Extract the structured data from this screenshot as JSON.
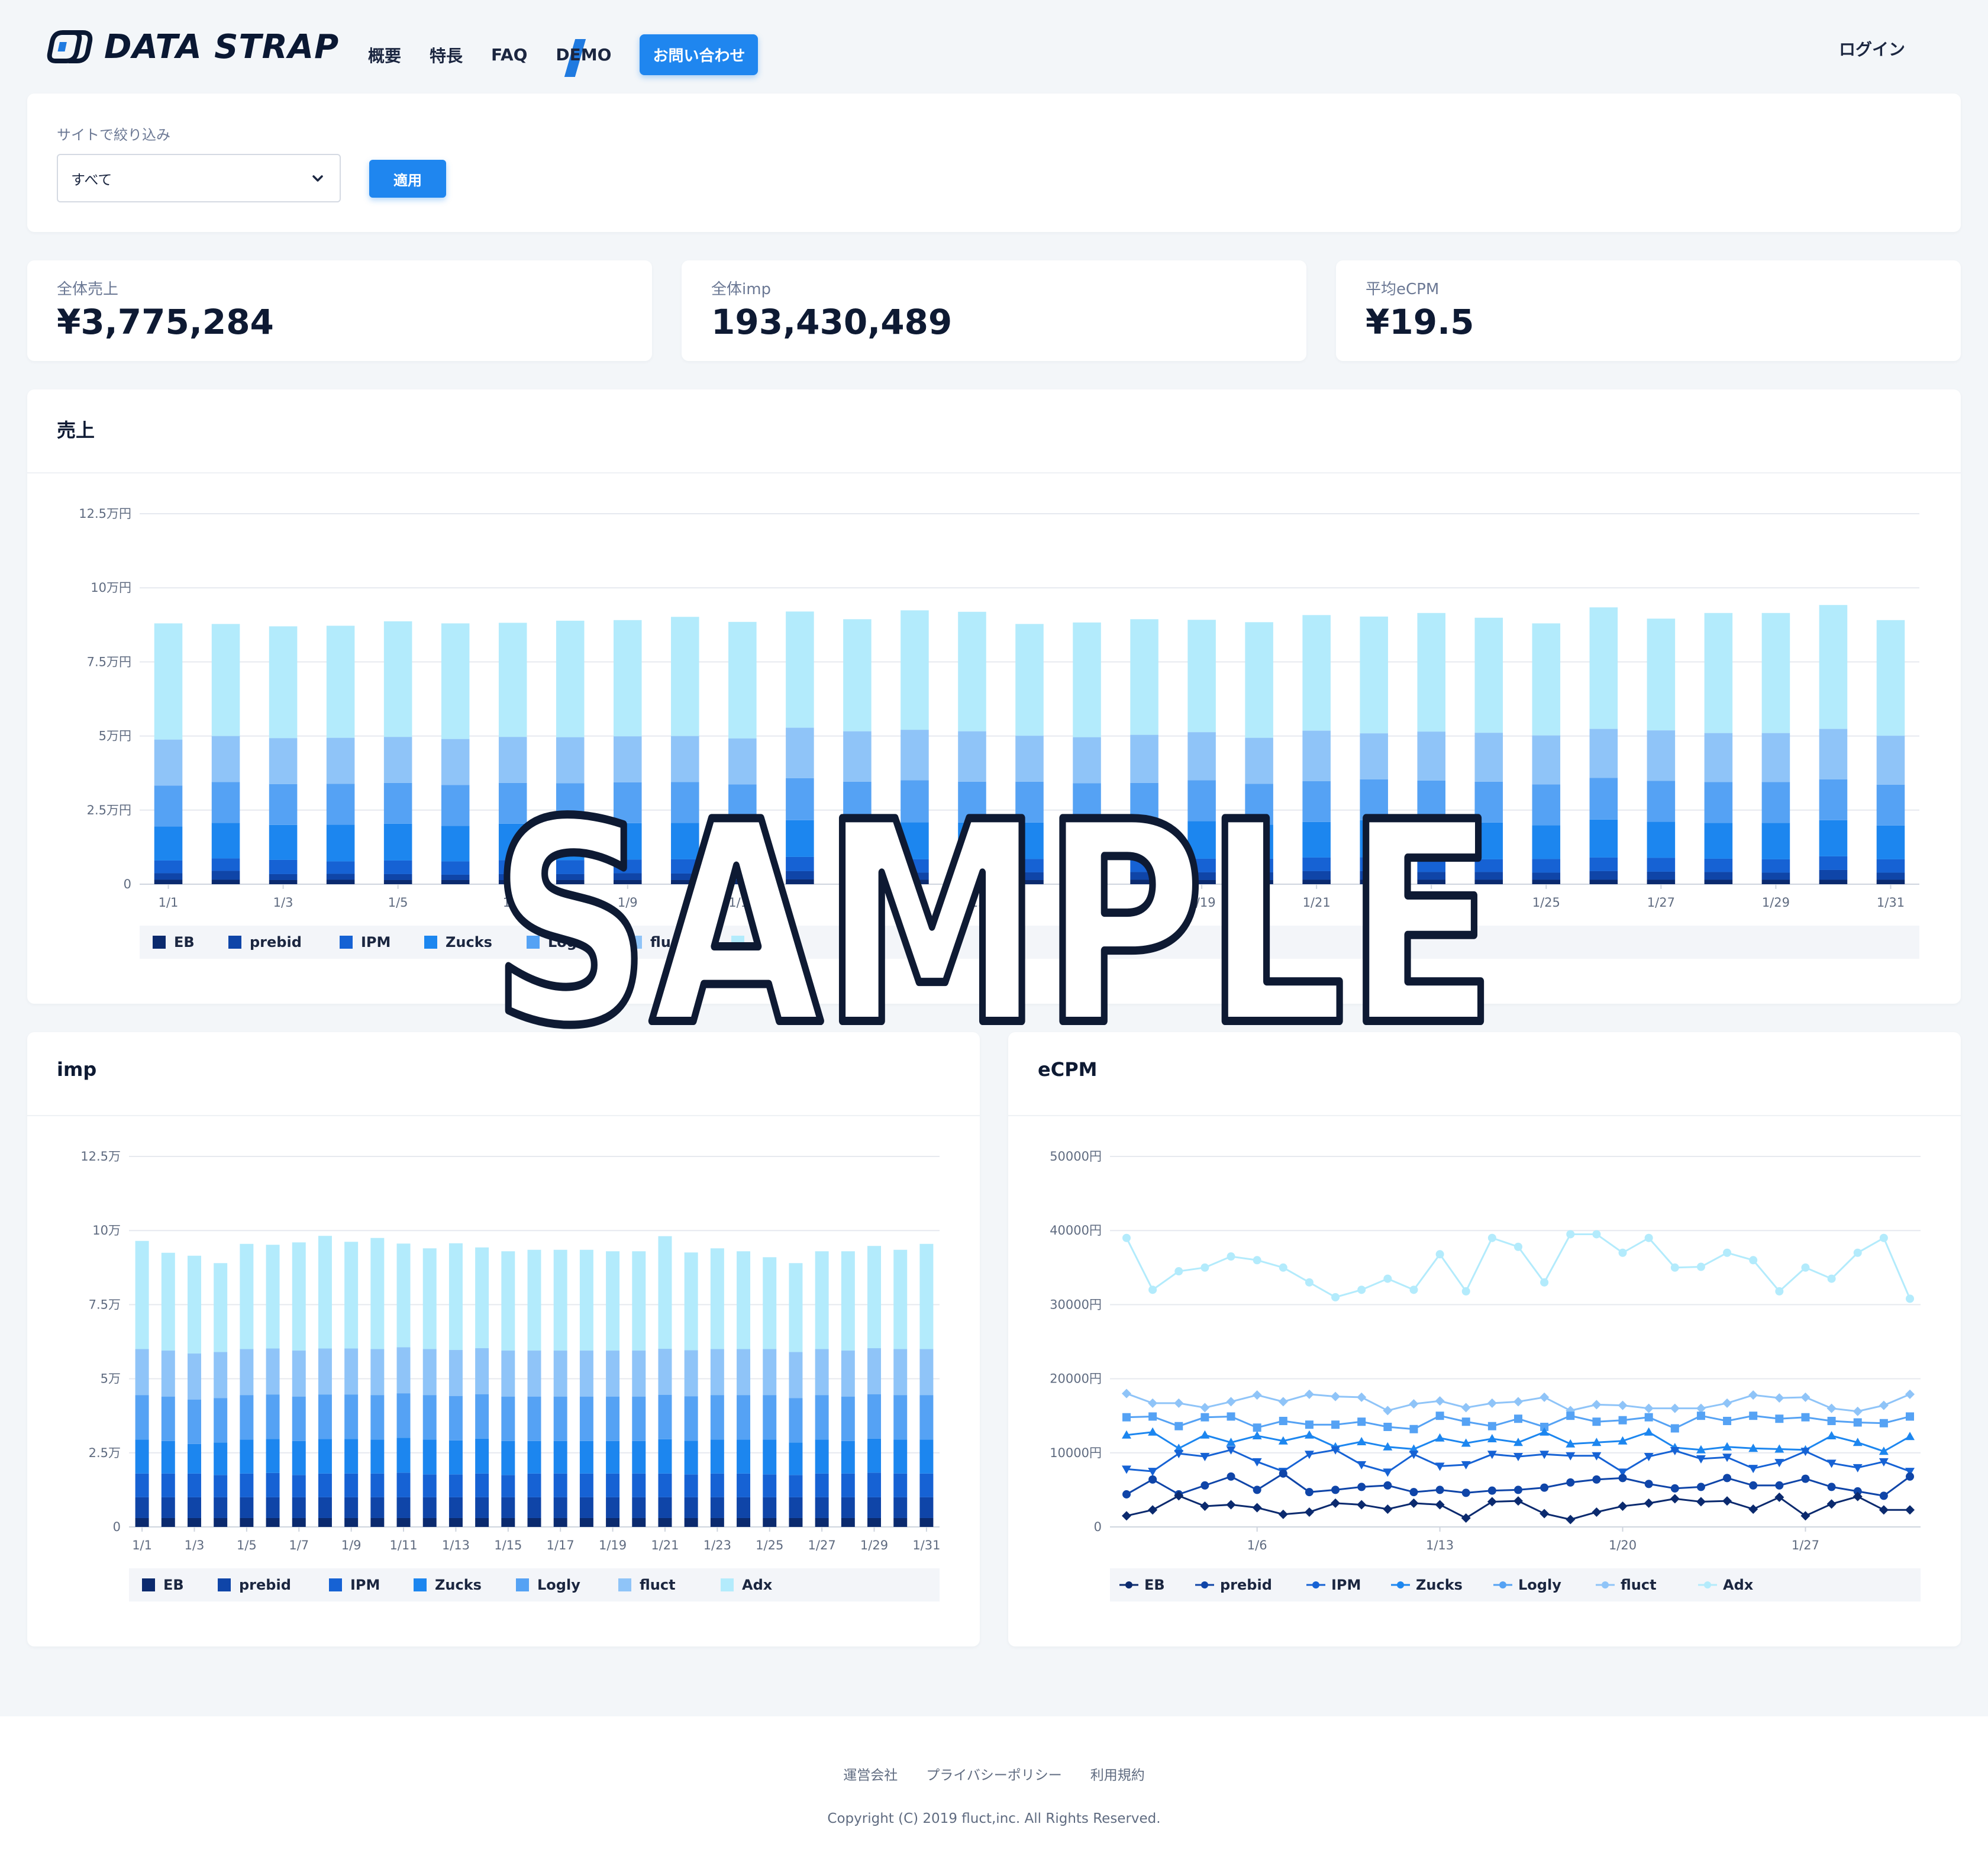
{
  "header": {
    "logo_text": "DATA STRAP",
    "nav": [
      {
        "label": "概要"
      },
      {
        "label": "特長"
      },
      {
        "label": "FAQ"
      },
      {
        "label": "DEMO"
      }
    ],
    "contact_label": "お問い合わせ",
    "login_label": "ログイン"
  },
  "filter": {
    "label": "サイトで絞り込み",
    "selected": "すべて",
    "apply_label": "適用"
  },
  "stats": [
    {
      "label": "全体売上",
      "value": "¥3,775,284"
    },
    {
      "label": "全体imp",
      "value": "193,430,489"
    },
    {
      "label": "平均eCPM",
      "value": "¥19.5"
    }
  ],
  "colors": {
    "EB": "#0b2a6e",
    "prebid": "#0f45a8",
    "IPM": "#1662d4",
    "Zucks": "#1c86ef",
    "Logly": "#55a2f4",
    "fluct": "#8fc4f8",
    "Adx": "#b3ebfc"
  },
  "chart_data": [
    {
      "type": "bar",
      "stacked": true,
      "title": "売上",
      "categories": [
        "1/1",
        "1/2",
        "1/3",
        "1/4",
        "1/5",
        "1/6",
        "1/7",
        "1/8",
        "1/9",
        "1/10",
        "1/11",
        "1/12",
        "1/13",
        "1/14",
        "1/15",
        "1/16",
        "1/17",
        "1/18",
        "1/19",
        "1/20",
        "1/21",
        "1/22",
        "1/23",
        "1/24",
        "1/25",
        "1/26",
        "1/27",
        "1/28",
        "1/29",
        "1/30",
        "1/31"
      ],
      "tick_labels": [
        "1/1",
        "1/3",
        "1/5",
        "1/7",
        "1/9",
        "1/11",
        "1/13",
        "1/15",
        "1/17",
        "1/19",
        "1/21",
        "1/23",
        "1/25",
        "1/27",
        "1/29",
        "1/31"
      ],
      "y_ticks": [
        "0",
        "2.5万円",
        "5万円",
        "7.5万円",
        "10万円",
        "12.5万円"
      ],
      "ylim": [
        0,
        125000
      ],
      "series": [
        {
          "name": "EB",
          "values": [
            1500,
            1500,
            1400,
            1500,
            1400,
            1400,
            1400,
            1400,
            1400,
            1400,
            1400,
            1600,
            1500,
            1500,
            1400,
            1400,
            1400,
            1500,
            1400,
            1400,
            1500,
            1500,
            1500,
            1500,
            1500,
            1500,
            1500,
            1500,
            1500,
            1500,
            1500
          ]
        },
        {
          "name": "prebid",
          "values": [
            2200,
            3000,
            2000,
            2000,
            2000,
            1800,
            2000,
            2000,
            2300,
            2200,
            2300,
            2800,
            2800,
            2400,
            2400,
            2600,
            2400,
            2600,
            2600,
            2600,
            2900,
            2900,
            2600,
            2600,
            2400,
            2900,
            2700,
            2600,
            2400,
            3300,
            2400
          ]
        },
        {
          "name": "IPM",
          "values": [
            4300,
            4200,
            4800,
            4200,
            4600,
            4500,
            4700,
            4700,
            4600,
            4800,
            4400,
            4800,
            4700,
            4500,
            4500,
            4500,
            4500,
            4600,
            4600,
            4600,
            4600,
            4700,
            4600,
            4300,
            4600,
            4600,
            4700,
            4500,
            4500,
            4600,
            4500
          ]
        },
        {
          "name": "Zucks",
          "values": [
            11500,
            12000,
            11800,
            12400,
            12400,
            12000,
            12300,
            12200,
            12300,
            12300,
            11800,
            12400,
            11800,
            12500,
            12500,
            12300,
            12000,
            11700,
            12700,
            11500,
            12000,
            12500,
            12500,
            12400,
            11400,
            12800,
            12200,
            12100,
            12300,
            12200,
            11400
          ]
        },
        {
          "name": "Logly",
          "values": [
            13800,
            13800,
            13800,
            13800,
            13800,
            13800,
            13800,
            13800,
            13800,
            13800,
            13800,
            14200,
            13800,
            14200,
            13800,
            13800,
            13800,
            13800,
            13800,
            13800,
            13800,
            13800,
            13800,
            13800,
            13800,
            14100,
            13800,
            13800,
            13800,
            13800,
            13800
          ]
        },
        {
          "name": "fluct",
          "values": [
            15500,
            15500,
            15500,
            15500,
            15500,
            15500,
            15500,
            15500,
            15500,
            15500,
            15500,
            17000,
            17000,
            17000,
            17000,
            15500,
            15500,
            16200,
            16200,
            15500,
            17000,
            15500,
            16500,
            16500,
            16500,
            16500,
            17000,
            16500,
            16500,
            17000,
            16500
          ]
        },
        {
          "name": "Adx",
          "values": [
            39200,
            37800,
            37700,
            37800,
            39000,
            39000,
            38500,
            39300,
            39200,
            40200,
            39300,
            39200,
            37800,
            40300,
            40300,
            37700,
            38700,
            39000,
            37900,
            39000,
            39000,
            39400,
            40000,
            38800,
            37800,
            41000,
            37700,
            40500,
            40500,
            41800,
            39000
          ]
        }
      ],
      "legend": [
        "EB",
        "prebid",
        "IPM",
        "Zucks",
        "Logly",
        "fluct",
        "Adx"
      ]
    },
    {
      "type": "bar",
      "stacked": true,
      "title": "imp",
      "categories": [
        "1/1",
        "1/2",
        "1/3",
        "1/4",
        "1/5",
        "1/6",
        "1/7",
        "1/8",
        "1/9",
        "1/10",
        "1/11",
        "1/12",
        "1/13",
        "1/14",
        "1/15",
        "1/16",
        "1/17",
        "1/18",
        "1/19",
        "1/20",
        "1/21",
        "1/22",
        "1/23",
        "1/24",
        "1/25",
        "1/26",
        "1/27",
        "1/28",
        "1/29",
        "1/30",
        "1/31"
      ],
      "tick_labels": [
        "1/1",
        "1/3",
        "1/5",
        "1/7",
        "1/9",
        "1/11",
        "1/13",
        "1/15",
        "1/17",
        "1/19",
        "1/21",
        "1/23",
        "1/25",
        "1/27",
        "1/29",
        "1/31"
      ],
      "y_ticks": [
        "0",
        "2.5万",
        "5万",
        "7.5万",
        "10万",
        "12.5万"
      ],
      "ylim": [
        0,
        125000
      ],
      "series": [
        {
          "name": "EB",
          "values": [
            3000,
            3000,
            3000,
            3000,
            3000,
            3000,
            3000,
            3000,
            3000,
            3000,
            3000,
            3000,
            3000,
            3000,
            3000,
            3000,
            3000,
            3000,
            3000,
            3000,
            3000,
            3000,
            3000,
            3000,
            3000,
            3000,
            3000,
            3000,
            3000,
            3000,
            3000
          ]
        },
        {
          "name": "prebid",
          "values": [
            7000,
            7000,
            7000,
            7000,
            7000,
            7000,
            7000,
            7000,
            7000,
            7000,
            7000,
            7000,
            7000,
            7000,
            7000,
            7000,
            7000,
            7000,
            7000,
            7000,
            7000,
            7000,
            7000,
            7000,
            7000,
            7000,
            7000,
            7000,
            7000,
            7000,
            7000
          ]
        },
        {
          "name": "IPM",
          "values": [
            8000,
            8000,
            8000,
            7500,
            8000,
            8200,
            7500,
            8000,
            8000,
            8000,
            8300,
            7700,
            7700,
            8000,
            7500,
            8000,
            8000,
            8000,
            8000,
            8000,
            8000,
            7700,
            8000,
            8000,
            7700,
            7500,
            8000,
            8000,
            8300,
            8000,
            8000
          ]
        },
        {
          "name": "Zucks",
          "values": [
            11500,
            11000,
            10000,
            11000,
            11500,
            11500,
            11500,
            11700,
            11700,
            11500,
            11800,
            11800,
            11500,
            11800,
            11500,
            11000,
            11000,
            11000,
            11000,
            11000,
            11600,
            11400,
            11500,
            11500,
            11800,
            11000,
            11500,
            11000,
            11500,
            11500,
            11500
          ]
        },
        {
          "name": "Logly",
          "values": [
            15000,
            15000,
            15000,
            15000,
            15000,
            15000,
            15000,
            15000,
            15000,
            15000,
            15000,
            15000,
            15000,
            15000,
            15000,
            15000,
            15000,
            15000,
            15000,
            15000,
            15000,
            15000,
            15000,
            15000,
            15000,
            15000,
            15000,
            15000,
            15000,
            15000,
            15000
          ]
        },
        {
          "name": "fluct",
          "values": [
            15500,
            15500,
            15500,
            15500,
            15500,
            15500,
            15500,
            15500,
            15500,
            15500,
            15500,
            15500,
            15500,
            15500,
            15500,
            15500,
            15500,
            15500,
            15500,
            15500,
            15500,
            15500,
            15500,
            15500,
            15500,
            15500,
            15500,
            15500,
            15500,
            15500,
            15500
          ]
        },
        {
          "name": "Adx",
          "values": [
            36500,
            33000,
            33000,
            30000,
            35500,
            35000,
            36500,
            38000,
            36000,
            37500,
            35000,
            34000,
            36000,
            34000,
            33500,
            34000,
            34000,
            34000,
            33500,
            33500,
            38000,
            33000,
            34000,
            33000,
            31000,
            30000,
            33000,
            33500,
            34500,
            33500,
            35500
          ]
        }
      ],
      "legend": [
        "EB",
        "prebid",
        "IPM",
        "Zucks",
        "Logly",
        "fluct",
        "Adx"
      ]
    },
    {
      "type": "line",
      "title": "eCPM",
      "x": [
        "1/1",
        "1/2",
        "1/3",
        "1/4",
        "1/5",
        "1/6",
        "1/7",
        "1/8",
        "1/9",
        "1/10",
        "1/11",
        "1/12",
        "1/13",
        "1/14",
        "1/15",
        "1/16",
        "1/17",
        "1/18",
        "1/19",
        "1/20",
        "1/21",
        "1/22",
        "1/23",
        "1/24",
        "1/25",
        "1/26",
        "1/27",
        "1/28",
        "1/29",
        "1/30",
        "1/31"
      ],
      "tick_labels": [
        "1/6",
        "1/13",
        "1/20",
        "1/27"
      ],
      "y_ticks": [
        "0",
        "10000円",
        "20000円",
        "30000円",
        "40000円",
        "50000円"
      ],
      "ylim": [
        0,
        50000
      ],
      "series": [
        {
          "name": "EB",
          "values": [
            1500,
            2300,
            4200,
            2800,
            3000,
            2600,
            1700,
            2000,
            3200,
            3000,
            2400,
            3200,
            3000,
            1200,
            3400,
            3500,
            1800,
            1000,
            2000,
            2800,
            3200,
            3800,
            3400,
            3500,
            2400,
            4000,
            1500,
            3100,
            4100,
            2300,
            2300
          ]
        },
        {
          "name": "prebid",
          "values": [
            4400,
            6400,
            4400,
            5600,
            6800,
            5000,
            7200,
            4700,
            5000,
            5400,
            5600,
            4700,
            5000,
            4600,
            4900,
            5000,
            5300,
            6000,
            6400,
            6600,
            5800,
            5200,
            5400,
            6600,
            5600,
            5600,
            6500,
            5400,
            4800,
            4200,
            6800
          ]
        },
        {
          "name": "IPM",
          "values": [
            7800,
            7500,
            9900,
            9500,
            10400,
            8800,
            7500,
            9800,
            10400,
            8400,
            7400,
            9800,
            8200,
            8400,
            9800,
            9500,
            9800,
            9600,
            9600,
            7400,
            9500,
            10300,
            9200,
            9400,
            7900,
            8700,
            10200,
            8600,
            8000,
            8800,
            7500
          ]
        },
        {
          "name": "Zucks",
          "values": [
            12400,
            12800,
            10600,
            12400,
            11400,
            12300,
            11600,
            12400,
            10800,
            11500,
            10800,
            10500,
            12000,
            11300,
            11900,
            11400,
            12800,
            11200,
            11400,
            11600,
            12800,
            10700,
            10400,
            10800,
            10600,
            10500,
            10400,
            12300,
            11400,
            10200,
            12200
          ]
        },
        {
          "name": "Logly",
          "values": [
            14800,
            14900,
            13600,
            14800,
            14900,
            13400,
            14300,
            13800,
            13800,
            14200,
            13500,
            13200,
            15000,
            14200,
            13600,
            14600,
            13500,
            15000,
            14200,
            14400,
            14800,
            13300,
            15000,
            14300,
            15000,
            14600,
            14800,
            14300,
            14100,
            14000,
            14900
          ]
        },
        {
          "name": "fluct",
          "values": [
            18000,
            16700,
            16700,
            16100,
            16900,
            17800,
            16900,
            17900,
            17600,
            17500,
            15700,
            16600,
            17000,
            16100,
            16700,
            16900,
            17500,
            15700,
            16500,
            16400,
            16000,
            16000,
            16000,
            16700,
            17800,
            17400,
            17500,
            16000,
            15600,
            16400,
            17900
          ]
        },
        {
          "name": "Adx",
          "values": [
            39000,
            32000,
            34500,
            35000,
            36500,
            36000,
            35000,
            33000,
            31000,
            32000,
            33500,
            32000,
            36800,
            31800,
            39000,
            37800,
            33000,
            39500,
            39500,
            37000,
            39000,
            35000,
            35100,
            37000,
            36000,
            31800,
            35000,
            33500,
            37000,
            39000,
            30800
          ]
        }
      ],
      "legend": [
        "EB",
        "prebid",
        "IPM",
        "Zucks",
        "Logly",
        "fluct",
        "Adx"
      ]
    }
  ],
  "footer": {
    "links": [
      {
        "label": "運営会社"
      },
      {
        "label": "プライバシーポリシー"
      },
      {
        "label": "利用規約"
      }
    ],
    "copyright": "Copyright (C) 2019 fluct,inc. All Rights Reserved."
  },
  "watermark": "SAMPLE"
}
